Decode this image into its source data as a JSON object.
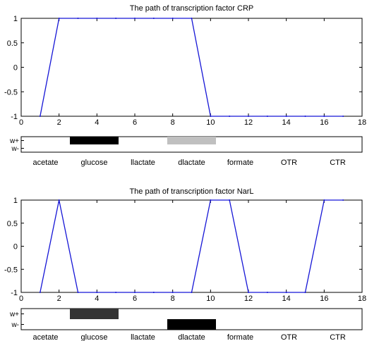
{
  "chart_data": [
    {
      "type": "line",
      "title": "The path of transcription factor CRP",
      "xlim": [
        0,
        18
      ],
      "ylim": [
        -1,
        1
      ],
      "xticks": [
        "0",
        "2",
        "4",
        "6",
        "8",
        "10",
        "12",
        "14",
        "16",
        "18"
      ],
      "yticks": [
        "1",
        "0.5",
        "0",
        "-0.5",
        "-1"
      ],
      "series": [
        {
          "x": [
            1,
            2,
            3,
            4,
            5,
            6,
            7,
            8,
            9,
            10,
            11,
            12,
            13,
            14,
            15,
            16,
            17
          ],
          "y": [
            -1,
            1,
            1,
            1,
            1,
            1,
            1,
            1,
            1,
            -1,
            -1,
            -1,
            -1,
            -1,
            -1,
            -1,
            -1
          ]
        }
      ],
      "indicator": {
        "levels": [
          "w+",
          "w-"
        ],
        "categories": [
          "acetate",
          "glucose",
          "llactate",
          "dlactate",
          "formate",
          "OTR",
          "CTR"
        ],
        "bars": [
          {
            "category": "glucose",
            "level": "w+",
            "color": "#000000"
          },
          {
            "category": "dlactate",
            "level": "w+",
            "color": "#c0c0c0"
          }
        ]
      }
    },
    {
      "type": "line",
      "title": "The path of transcription factor NarL",
      "xlim": [
        0,
        18
      ],
      "ylim": [
        -1,
        1
      ],
      "xticks": [
        "0",
        "2",
        "4",
        "6",
        "8",
        "10",
        "12",
        "14",
        "16",
        "18"
      ],
      "yticks": [
        "1",
        "0.5",
        "0",
        "-0.5",
        "-1"
      ],
      "series": [
        {
          "x": [
            1,
            2,
            3,
            4,
            5,
            6,
            7,
            8,
            9,
            10,
            11,
            12,
            13,
            14,
            15,
            16,
            17
          ],
          "y": [
            -1,
            1,
            -1,
            -1,
            -1,
            -1,
            -1,
            -1,
            -1,
            1,
            1,
            -1,
            -1,
            -1,
            -1,
            1,
            1
          ]
        }
      ],
      "indicator": {
        "levels": [
          "w+",
          "w-"
        ],
        "categories": [
          "acetate",
          "glucose",
          "llactate",
          "dlactate",
          "formate",
          "OTR",
          "CTR"
        ],
        "bars": [
          {
            "category": "glucose",
            "level": "w+",
            "color": "#333333"
          },
          {
            "category": "dlactate",
            "level": "w-",
            "color": "#000000"
          }
        ]
      }
    }
  ]
}
